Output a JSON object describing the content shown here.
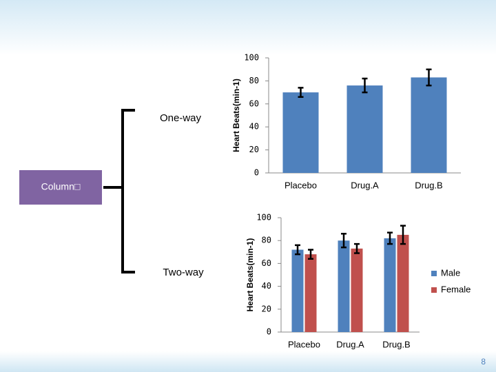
{
  "slide": {
    "box_label": "Column□",
    "branches": [
      "One-way",
      "Two-way"
    ],
    "page_number": "8"
  },
  "chart_data": [
    {
      "type": "bar",
      "y_label": "Heart Beats(min-1)",
      "categories": [
        "Placebo",
        "Drug.A",
        "Drug.B"
      ],
      "values": [
        70,
        76,
        83
      ],
      "errors": [
        4,
        6,
        7
      ],
      "color": "#4f81bd",
      "ylim": [
        0,
        100
      ],
      "yticks": [
        0,
        20,
        40,
        60,
        80,
        100
      ],
      "grid": false
    },
    {
      "type": "grouped_bar",
      "y_label": "Heart Beats(min-1)",
      "categories": [
        "Placebo",
        "Drug.A",
        "Drug.B"
      ],
      "series": [
        {
          "name": "Male",
          "color": "#4f81bd",
          "values": [
            72,
            80,
            82
          ],
          "errors": [
            4,
            6,
            5
          ]
        },
        {
          "name": "Female",
          "color": "#c0504d",
          "values": [
            68,
            73,
            85
          ],
          "errors": [
            4,
            4,
            8
          ]
        }
      ],
      "ylim": [
        0,
        100
      ],
      "yticks": [
        0,
        20,
        40,
        60,
        80,
        100
      ],
      "grid": false,
      "legend": "right"
    }
  ]
}
